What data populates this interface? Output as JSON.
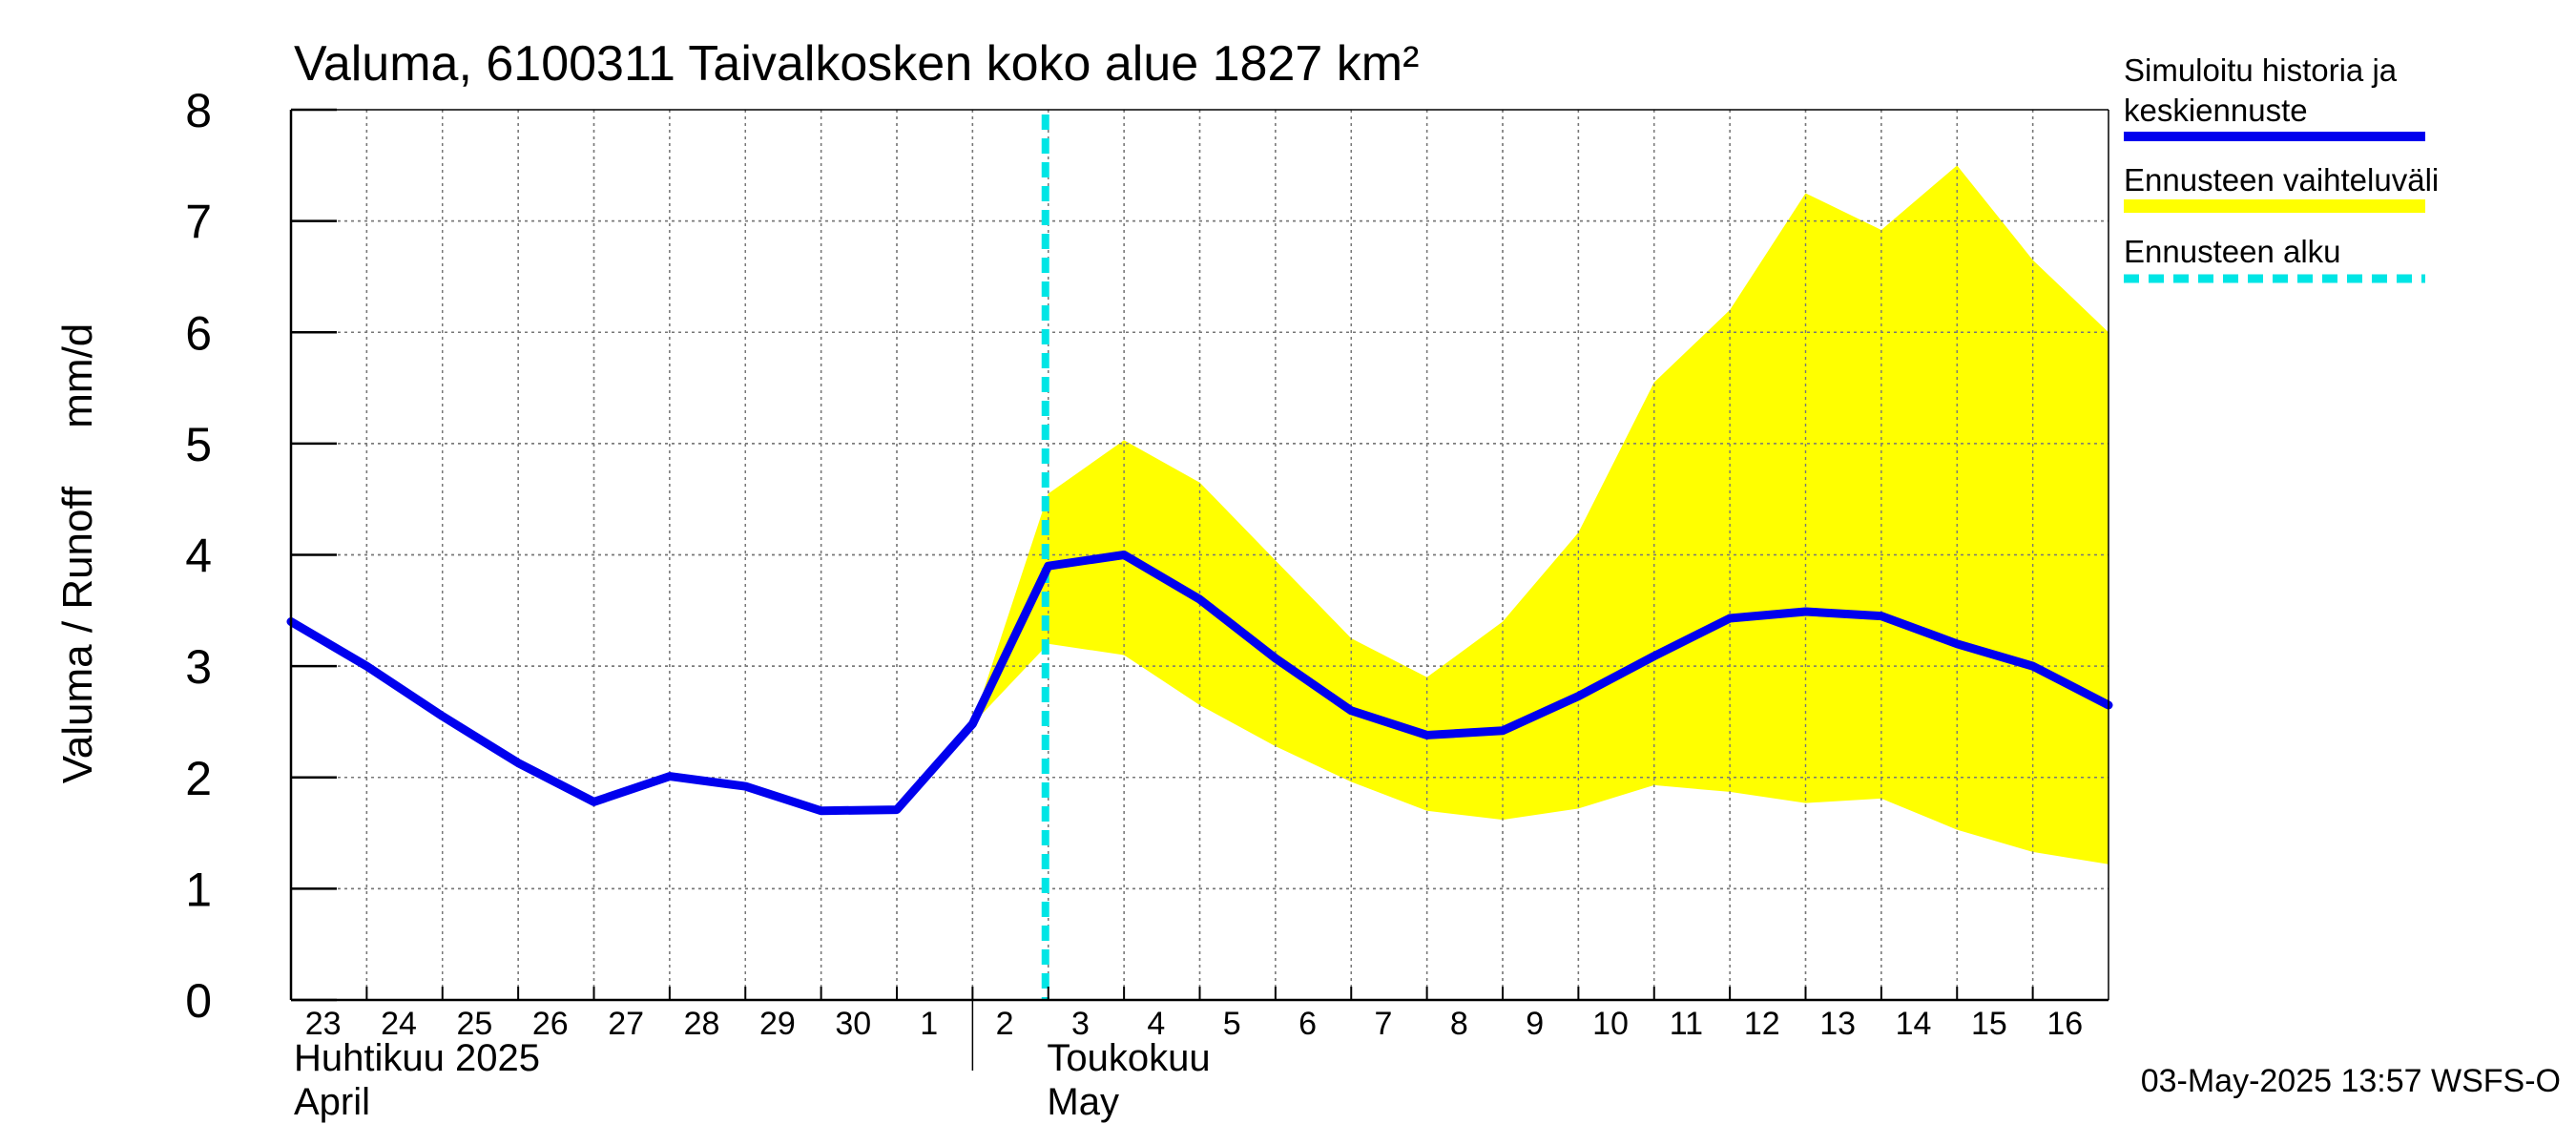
{
  "chart_data": {
    "type": "line",
    "title": "Valuma, 6100311 Taivalkosken koko alue 1827 km²",
    "ylabel": "Valuma / Runoff     mm/d",
    "ylim": [
      0,
      8
    ],
    "yticks": [
      "0",
      "1",
      "2",
      "3",
      "4",
      "5",
      "6",
      "7",
      "8"
    ],
    "xlim": [
      "2025-04-23",
      "2025-05-17"
    ],
    "x_tick_labels": [
      "23",
      "24",
      "25",
      "26",
      "27",
      "28",
      "29",
      "30",
      "1",
      "2",
      "3",
      "4",
      "5",
      "6",
      "7",
      "8",
      "9",
      "10",
      "11",
      "12",
      "13",
      "14",
      "15",
      "16"
    ],
    "month_labels": [
      {
        "line1": "Huhtikuu  2025",
        "line2": "April",
        "start": "2025-04-23"
      },
      {
        "line1": "Toukokuu",
        "line2": "May",
        "start": "2025-05-02"
      }
    ],
    "grid": true,
    "legend": {
      "placement": "right",
      "entries": [
        {
          "label_line1": "Simuloitu historia ja",
          "label_line2": "keskiennuste",
          "color": "#0000ee",
          "style": "solid"
        },
        {
          "label_line1": "Ennusteen vaihteluväli",
          "label_line2": "",
          "color": "#ffff00",
          "style": "band"
        },
        {
          "label_line1": "Ennusteen alku",
          "label_line2": "",
          "color": "#00e5e5",
          "style": "dashed"
        }
      ]
    },
    "forecast_start": "2025-05-03",
    "series": [
      {
        "name": "Simuloitu historia ja keskiennuste",
        "color": "#0000ee",
        "x": [
          "2025-04-23",
          "2025-04-24",
          "2025-04-25",
          "2025-04-26",
          "2025-04-27",
          "2025-04-28",
          "2025-04-29",
          "2025-04-30",
          "2025-05-01",
          "2025-05-02",
          "2025-05-03",
          "2025-05-04",
          "2025-05-05",
          "2025-05-06",
          "2025-05-07",
          "2025-05-08",
          "2025-05-09",
          "2025-05-10",
          "2025-05-11",
          "2025-05-12",
          "2025-05-13",
          "2025-05-14",
          "2025-05-15",
          "2025-05-16",
          "2025-05-17"
        ],
        "values": [
          3.4,
          3.0,
          2.55,
          2.13,
          1.78,
          2.01,
          1.92,
          1.7,
          1.71,
          2.48,
          3.9,
          4.0,
          3.6,
          3.07,
          2.6,
          2.38,
          2.42,
          2.73,
          3.09,
          3.43,
          3.49,
          3.45,
          3.2,
          3.0,
          2.65
        ]
      },
      {
        "name": "Ennusteen vaihteluväli",
        "color": "#ffff00",
        "x": [
          "2025-05-02",
          "2025-05-03",
          "2025-05-04",
          "2025-05-05",
          "2025-05-06",
          "2025-05-07",
          "2025-05-08",
          "2025-05-09",
          "2025-05-10",
          "2025-05-11",
          "2025-05-12",
          "2025-05-13",
          "2025-05-14",
          "2025-05-15",
          "2025-05-16",
          "2025-05-17"
        ],
        "upper": [
          2.48,
          4.55,
          5.03,
          4.65,
          3.95,
          3.25,
          2.9,
          3.4,
          4.2,
          5.55,
          6.2,
          7.25,
          6.92,
          7.5,
          6.65,
          6.0
        ],
        "lower": [
          2.48,
          3.2,
          3.1,
          2.65,
          2.28,
          1.96,
          1.7,
          1.62,
          1.72,
          1.93,
          1.87,
          1.77,
          1.81,
          1.53,
          1.33,
          1.22
        ]
      }
    ]
  },
  "footer": {
    "timestamp": "03-May-2025 13:57 WSFS-O"
  }
}
